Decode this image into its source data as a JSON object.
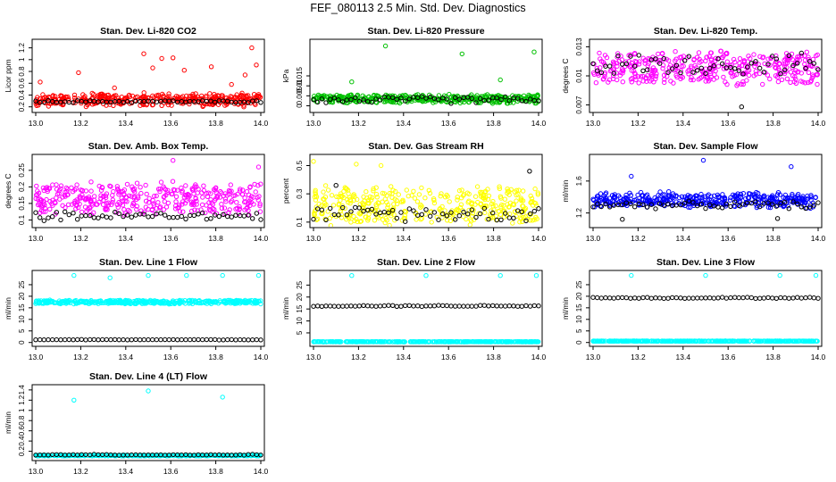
{
  "page": {
    "title": "FEF_080113  2.5 Min. Std. Dev. Diagnostics"
  },
  "colors": {
    "red": "#ff0000",
    "green": "#00c000",
    "magenta": "#ff00ff",
    "yellow": "#ffff00",
    "blue": "#0000ff",
    "cyan": "#00ffff",
    "black": "#000000"
  },
  "chart_data": [
    {
      "type": "scatter",
      "title": "Stan. Dev. Li-820 CO2",
      "ylabel": "Licor ppm",
      "xlim": [
        13.0,
        14.0
      ],
      "ylim": [
        0.15,
        1.3
      ],
      "xticks": [
        "13.0",
        "13.2",
        "13.4",
        "13.6",
        "13.8",
        "14.0"
      ],
      "yticks": [
        0.2,
        0.4,
        0.6,
        0.8,
        1.0,
        1.2
      ],
      "series": [
        {
          "color": "red",
          "base": 0.32,
          "spread": 0.25,
          "outliers": [
            [
              13.02,
              0.62
            ],
            [
              13.19,
              0.78
            ],
            [
              13.35,
              0.52
            ],
            [
              13.48,
              1.1
            ],
            [
              13.52,
              0.86
            ],
            [
              13.56,
              1.02
            ],
            [
              13.61,
              1.03
            ],
            [
              13.66,
              0.82
            ],
            [
              13.78,
              0.88
            ],
            [
              13.87,
              0.58
            ],
            [
              13.93,
              0.74
            ],
            [
              13.96,
              1.2
            ],
            [
              13.98,
              0.91
            ]
          ]
        },
        {
          "color": "black",
          "base": 0.29,
          "spread": 0.04,
          "outliers": []
        }
      ]
    },
    {
      "type": "scatter",
      "title": "Stan. Dev. Li-820 Pressure",
      "ylabel": "kPa",
      "xlim": [
        13.0,
        14.0
      ],
      "ylim": [
        -0.002,
        0.032
      ],
      "xticks": [
        "13.0",
        "13.2",
        "13.4",
        "13.6",
        "13.8",
        "14.0"
      ],
      "yticks": [
        0.0,
        0.005,
        0.01,
        0.015
      ],
      "series": [
        {
          "color": "green",
          "base": 0.0035,
          "spread": 0.005,
          "outliers": [
            [
              13.32,
              0.03
            ],
            [
              13.98,
              0.027
            ],
            [
              13.66,
              0.026
            ],
            [
              13.83,
              0.013
            ],
            [
              13.17,
              0.012
            ]
          ]
        },
        {
          "color": "black",
          "base": 0.003,
          "spread": 0.004,
          "outliers": []
        }
      ]
    },
    {
      "type": "scatter",
      "title": "Stan. Dev. Li-820 Temp.",
      "ylabel": "degrees C",
      "xlim": [
        13.0,
        14.0
      ],
      "ylim": [
        0.0065,
        0.0135
      ],
      "xticks": [
        "13.0",
        "13.2",
        "13.4",
        "13.6",
        "13.8",
        "14.0"
      ],
      "yticks": [
        0.007,
        0.01,
        0.013
      ],
      "series": [
        {
          "color": "magenta",
          "base": 0.0108,
          "spread": 0.0038,
          "outliers": []
        },
        {
          "color": "black",
          "base": 0.0112,
          "spread": 0.0025,
          "outliers": [
            [
              13.66,
              0.0068
            ]
          ]
        }
      ]
    },
    {
      "type": "scatter",
      "title": "Stan. Dev. Amb. Box Temp.",
      "ylabel": "degrees C",
      "xlim": [
        13.0,
        14.0
      ],
      "ylim": [
        0.085,
        0.29
      ],
      "xticks": [
        "13.0",
        "13.2",
        "13.4",
        "13.6",
        "13.8",
        "14.0"
      ],
      "yticks": [
        0.1,
        0.15,
        0.2,
        0.25
      ],
      "series": [
        {
          "color": "magenta",
          "base": 0.165,
          "spread": 0.11,
          "outliers": [
            [
              13.61,
              0.28
            ],
            [
              13.99,
              0.26
            ]
          ]
        },
        {
          "color": "black",
          "base": 0.112,
          "spread": 0.03,
          "outliers": []
        }
      ]
    },
    {
      "type": "scatter",
      "title": "Stan. Dev. Gas Stream RH",
      "ylabel": "percent",
      "xlim": [
        13.0,
        14.0
      ],
      "ylim": [
        0.08,
        0.56
      ],
      "xticks": [
        "13.0",
        "13.2",
        "13.4",
        "13.6",
        "13.8",
        "14.0"
      ],
      "yticks": [
        0.1,
        0.3,
        0.5
      ],
      "series": [
        {
          "color": "yellow",
          "base": 0.22,
          "spread": 0.3,
          "outliers": [
            [
              13.0,
              0.53
            ],
            [
              13.19,
              0.51
            ],
            [
              13.3,
              0.5
            ]
          ]
        },
        {
          "color": "black",
          "base": 0.16,
          "spread": 0.12,
          "outliers": [
            [
              13.96,
              0.46
            ],
            [
              13.1,
              0.36
            ]
          ]
        }
      ]
    },
    {
      "type": "scatter",
      "title": "Stan. Dev. Sample Flow",
      "ylabel": "ml/min",
      "xlim": [
        13.0,
        14.0
      ],
      "ylim": [
        1.05,
        1.9
      ],
      "xticks": [
        "13.0",
        "13.2",
        "13.4",
        "13.6",
        "13.8",
        "14.0"
      ],
      "yticks": [
        1.2,
        1.6
      ],
      "series": [
        {
          "color": "blue",
          "base": 1.36,
          "spread": 0.22,
          "outliers": [
            [
              13.49,
              1.86
            ],
            [
              13.88,
              1.78
            ],
            [
              13.17,
              1.66
            ]
          ]
        },
        {
          "color": "black",
          "base": 1.3,
          "spread": 0.1,
          "outliers": [
            [
              13.13,
              1.12
            ],
            [
              13.82,
              1.13
            ]
          ]
        }
      ]
    },
    {
      "type": "scatter",
      "title": "Stan. Dev. Line 1 Flow",
      "ylabel": "ml/min",
      "xlim": [
        13.0,
        14.0
      ],
      "ylim": [
        -0.5,
        30
      ],
      "xticks": [
        "13.0",
        "13.2",
        "13.4",
        "13.6",
        "13.8",
        "14.0"
      ],
      "yticks": [
        0,
        5,
        10,
        15,
        20,
        25
      ],
      "series": [
        {
          "color": "cyan",
          "base": 17.5,
          "spread": 1.8,
          "outliers": [
            [
              13.17,
              29
            ],
            [
              13.33,
              28
            ],
            [
              13.5,
              29
            ],
            [
              13.67,
              29
            ],
            [
              13.83,
              29
            ],
            [
              13.99,
              29
            ]
          ]
        },
        {
          "color": "black",
          "base": 1.2,
          "spread": 0.25,
          "outliers": []
        }
      ]
    },
    {
      "type": "scatter",
      "title": "Stan. Dev. Line 2 Flow",
      "ylabel": "ml/min",
      "xlim": [
        13.0,
        14.0
      ],
      "ylim": [
        0.5,
        30
      ],
      "xticks": [
        "13.0",
        "13.2",
        "13.4",
        "13.6",
        "13.8",
        "14.0"
      ],
      "yticks": [
        5,
        10,
        15,
        20,
        25
      ],
      "series": [
        {
          "color": "cyan",
          "base": 1.3,
          "spread": 0.15,
          "outliers": [
            [
              13.17,
              29
            ],
            [
              13.5,
              29
            ],
            [
              13.83,
              29
            ],
            [
              13.99,
              29
            ]
          ]
        },
        {
          "color": "black",
          "base": 16.3,
          "spread": 0.6,
          "outliers": []
        }
      ]
    },
    {
      "type": "scatter",
      "title": "Stan. Dev. Line 3 Flow",
      "ylabel": "ml/min",
      "xlim": [
        13.0,
        14.0
      ],
      "ylim": [
        -0.5,
        30
      ],
      "xticks": [
        "13.0",
        "13.2",
        "13.4",
        "13.6",
        "13.8",
        "14.0"
      ],
      "yticks": [
        0,
        5,
        10,
        15,
        20,
        25
      ],
      "series": [
        {
          "color": "cyan",
          "base": 0.6,
          "spread": 0.15,
          "outliers": [
            [
              13.17,
              29
            ],
            [
              13.5,
              29
            ],
            [
              13.83,
              29
            ],
            [
              13.99,
              29
            ]
          ]
        },
        {
          "color": "black",
          "base": 19.3,
          "spread": 0.6,
          "outliers": []
        }
      ]
    },
    {
      "type": "scatter",
      "title": "Stan. Dev. Line 4 (LT) Flow",
      "ylabel": "ml/min",
      "xlim": [
        13.0,
        14.0
      ],
      "ylim": [
        0.07,
        1.45
      ],
      "xticks": [
        "13.0",
        "13.2",
        "13.4",
        "13.6",
        "13.8",
        "14.0"
      ],
      "yticks": [
        0.2,
        0.4,
        0.6,
        0.8,
        1.0,
        1.2,
        1.4
      ],
      "series": [
        {
          "color": "cyan",
          "base": 0.115,
          "spread": 0.02,
          "outliers": [
            [
              13.17,
              1.2
            ],
            [
              13.5,
              1.38
            ],
            [
              13.83,
              1.26
            ]
          ]
        },
        {
          "color": "black",
          "base": 0.13,
          "spread": 0.02,
          "outliers": []
        }
      ]
    }
  ]
}
